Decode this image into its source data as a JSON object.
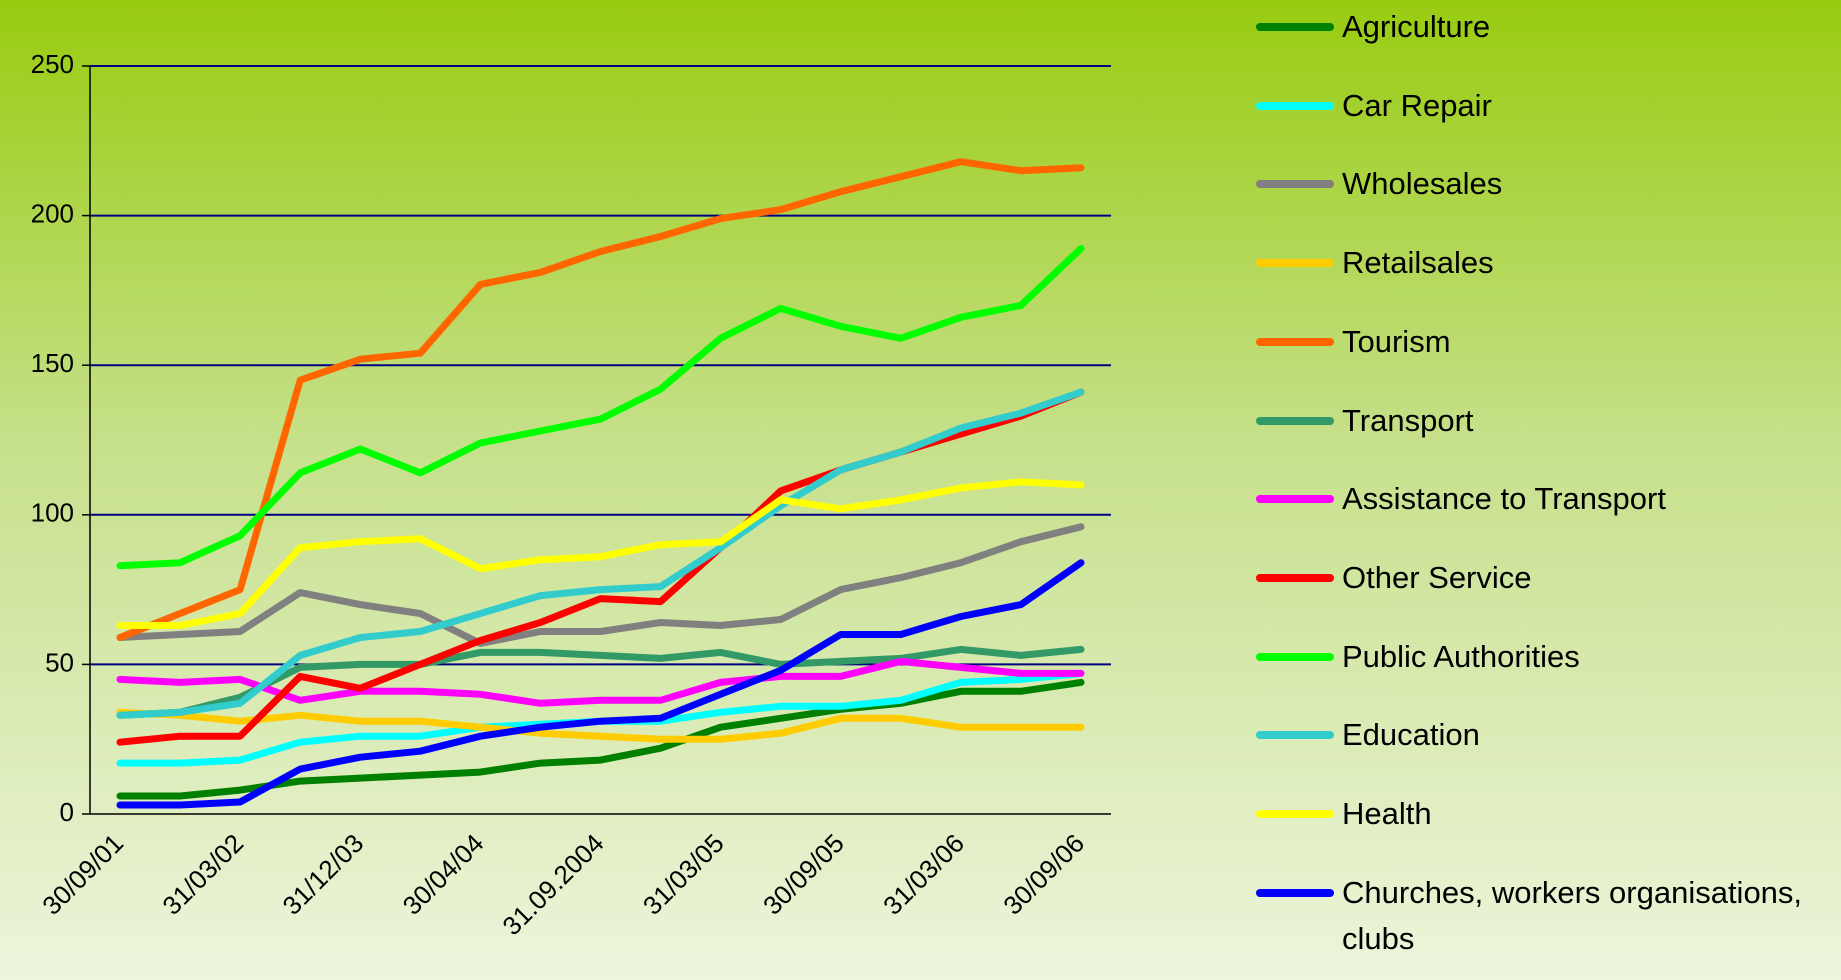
{
  "chart_data": {
    "type": "line",
    "categories": [
      "30/09/01",
      null,
      "31/03/02",
      null,
      "31/12/03",
      null,
      "30/04/04",
      null,
      "31.09.2004",
      null,
      "31/03/05",
      null,
      "30/09/05",
      null,
      "31/03/06",
      null,
      "30/09/06"
    ],
    "ylim": [
      0,
      250
    ],
    "yticks": [
      0,
      50,
      100,
      150,
      200,
      250
    ],
    "grid": true,
    "legend": "right",
    "series": [
      {
        "name": "Agriculture",
        "color": "#008000",
        "values": [
          6,
          6,
          8,
          11,
          12,
          13,
          14,
          17,
          18,
          22,
          29,
          32,
          35,
          37,
          41,
          41,
          44
        ]
      },
      {
        "name": "Car Repair",
        "color": "#00ffff",
        "values": [
          17,
          17,
          18,
          24,
          26,
          26,
          29,
          30,
          31,
          31,
          34,
          36,
          36,
          38,
          44,
          45,
          47
        ]
      },
      {
        "name": "Wholesales",
        "color": "#808080",
        "values": [
          59,
          60,
          61,
          74,
          70,
          67,
          57,
          61,
          61,
          64,
          63,
          65,
          75,
          79,
          84,
          91,
          96
        ]
      },
      {
        "name": "Retailsales",
        "color": "#ffcc00",
        "values": [
          34,
          33,
          31,
          33,
          31,
          31,
          29,
          27,
          26,
          25,
          25,
          27,
          32,
          32,
          29,
          29,
          29
        ]
      },
      {
        "name": "Tourism",
        "color": "#ff6600",
        "values": [
          59,
          67,
          75,
          145,
          152,
          154,
          177,
          181,
          188,
          193,
          199,
          202,
          208,
          213,
          218,
          215,
          216
        ]
      },
      {
        "name": "Transport",
        "color": "#339966",
        "values": [
          33,
          34,
          39,
          49,
          50,
          50,
          54,
          54,
          53,
          52,
          54,
          50,
          51,
          52,
          55,
          53,
          55
        ]
      },
      {
        "name": "Assistance to Transport",
        "color": "#ff00ff",
        "values": [
          45,
          44,
          45,
          38,
          41,
          41,
          40,
          37,
          38,
          38,
          44,
          46,
          46,
          51,
          49,
          47,
          47
        ]
      },
      {
        "name": "Other Service",
        "color": "#ff0000",
        "values": [
          24,
          26,
          26,
          46,
          42,
          50,
          58,
          64,
          72,
          71,
          89,
          108,
          115,
          121,
          127,
          133,
          141
        ]
      },
      {
        "name": "Public Authorities",
        "color": "#00ff00",
        "values": [
          83,
          84,
          93,
          114,
          122,
          114,
          124,
          128,
          132,
          142,
          159,
          169,
          163,
          159,
          166,
          170,
          189
        ]
      },
      {
        "name": "Education",
        "color": "#33cccc",
        "values": [
          33,
          34,
          37,
          53,
          59,
          61,
          67,
          73,
          75,
          76,
          89,
          103,
          115,
          121,
          129,
          134,
          141
        ]
      },
      {
        "name": "Health",
        "color": "#ffff00",
        "values": [
          63,
          63,
          67,
          89,
          91,
          92,
          82,
          85,
          86,
          90,
          91,
          105,
          102,
          105,
          109,
          111,
          110
        ]
      },
      {
        "name": "Churches, workers organisations, clubs",
        "color": "#0000ff",
        "values": [
          3,
          3,
          4,
          15,
          19,
          21,
          26,
          29,
          31,
          32,
          40,
          48,
          60,
          60,
          66,
          70,
          84
        ]
      }
    ]
  }
}
